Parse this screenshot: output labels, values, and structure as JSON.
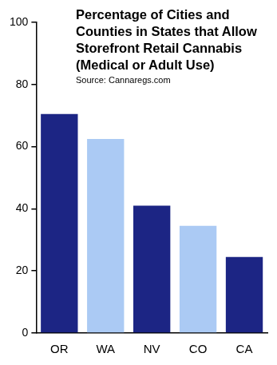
{
  "chart_data": {
    "type": "bar",
    "title": "Percentage of Cities and Counties in States that Allow Storefront Retail Cannabis (Medical or Adult Use)",
    "subtitle": "Source: Cannaregs.com",
    "categories": [
      "OR",
      "WA",
      "NV",
      "CO",
      "CA"
    ],
    "values": [
      70.5,
      62.5,
      41,
      34.5,
      24.5
    ],
    "colors": [
      "#1c2584",
      "#abcaf4",
      "#1c2584",
      "#abcaf4",
      "#1c2584"
    ],
    "ylim": [
      0,
      100
    ],
    "yticks": [
      0,
      20,
      40,
      60,
      80,
      100
    ],
    "grid": false
  }
}
